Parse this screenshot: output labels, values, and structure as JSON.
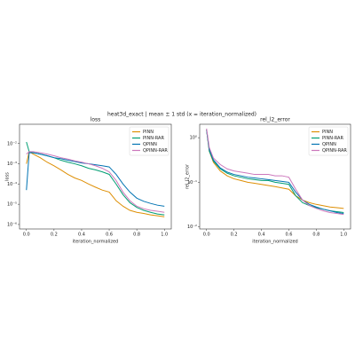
{
  "title": "heat3d_exact | mean ± 1 std (x = iteration_normalized)",
  "chart_data": [
    {
      "type": "line",
      "title": "loss",
      "xlabel": "iteration_normalized",
      "ylabel": "loss",
      "log_y": true,
      "legend": "upper right",
      "xlim": [
        -0.05,
        1.05
      ],
      "xticks": [
        {
          "value": 0,
          "label": "0.0"
        },
        0.2,
        0.4,
        0.6,
        0.8,
        {
          "value": 1,
          "label": "1.0"
        }
      ],
      "ylim": [
        6e-07,
        0.09
      ],
      "yticks": [
        {
          "value": 1e-06,
          "label": "10⁻⁶"
        },
        {
          "value": 1e-05,
          "label": "10⁻⁵"
        },
        {
          "value": 0.0001,
          "label": "10⁻⁴"
        },
        {
          "value": 0.001,
          "label": "10⁻³"
        },
        {
          "value": 0.01,
          "label": "10⁻²"
        }
      ],
      "x": [
        0,
        0.02,
        0.05,
        0.1,
        0.15,
        0.2,
        0.25,
        0.3,
        0.35,
        0.4,
        0.45,
        0.5,
        0.55,
        0.6,
        0.65,
        0.7,
        0.75,
        0.8,
        0.85,
        0.9,
        0.95,
        1.0
      ],
      "series": [
        {
          "name": "PINN",
          "color": "#de8f05",
          "values": [
            0.001,
            0.004,
            0.003,
            0.002,
            0.0012,
            0.0008,
            0.0005,
            0.0003,
            0.0002,
            0.00015,
            0.0001,
            7e-05,
            5e-05,
            4e-05,
            1.5e-05,
            8e-06,
            5e-06,
            4e-06,
            3.5e-06,
            3e-06,
            2.7e-06,
            2.4e-06
          ]
        },
        {
          "name": "PINN-RAR",
          "color": "#029e73",
          "values": [
            0.012,
            0.004,
            0.0035,
            0.003,
            0.0025,
            0.002,
            0.0015,
            0.0012,
            0.001,
            0.0008,
            0.0006,
            0.0005,
            0.0004,
            0.0003,
            0.0001,
            3e-05,
            1.2e-05,
            7e-06,
            5e-06,
            4e-06,
            3.3e-06,
            3e-06
          ]
        },
        {
          "name": "QPINN",
          "color": "#0173b2",
          "values": [
            5e-05,
            0.0035,
            0.0035,
            0.003,
            0.0025,
            0.002,
            0.0018,
            0.0015,
            0.0013,
            0.0011,
            0.001,
            0.0009,
            0.0008,
            0.0007,
            0.0003,
            0.0001,
            4e-05,
            2e-05,
            1.4e-05,
            1.1e-05,
            9e-06,
            8e-06
          ]
        },
        {
          "name": "QPINN-RAR",
          "color": "#cc78bc",
          "values": [
            0.003,
            0.004,
            0.004,
            0.0035,
            0.003,
            0.0025,
            0.002,
            0.0017,
            0.0014,
            0.0012,
            0.001,
            0.0008,
            0.0006,
            0.0004,
            0.00015,
            4e-05,
            1.5e-05,
            8e-06,
            6e-06,
            5e-06,
            4.5e-06,
            4e-06
          ]
        }
      ]
    },
    {
      "type": "line",
      "title": "rel_l2_error",
      "xlabel": "iteration_normalized",
      "ylabel": "rel_l2_error",
      "log_y": true,
      "legend": "upper right",
      "xlim": [
        -0.05,
        1.05
      ],
      "xticks": [
        {
          "value": 0,
          "label": "0.0"
        },
        0.2,
        0.4,
        0.6,
        0.8,
        {
          "value": 1,
          "label": "1.0"
        }
      ],
      "ylim": [
        0.009,
        2
      ],
      "yticks": [
        {
          "value": 0.01,
          "label": "10⁻²"
        },
        {
          "value": 0.1,
          "label": "10⁻¹"
        },
        {
          "value": 1,
          "label": "10⁰"
        }
      ],
      "x": [
        0,
        0.02,
        0.05,
        0.1,
        0.15,
        0.2,
        0.25,
        0.3,
        0.35,
        0.4,
        0.45,
        0.5,
        0.55,
        0.6,
        0.65,
        0.7,
        0.75,
        0.8,
        0.85,
        0.9,
        0.95,
        1.0
      ],
      "series": [
        {
          "name": "PINN",
          "color": "#de8f05",
          "values": [
            1.5,
            0.5,
            0.28,
            0.18,
            0.14,
            0.12,
            0.11,
            0.1,
            0.095,
            0.09,
            0.085,
            0.08,
            0.075,
            0.07,
            0.05,
            0.04,
            0.035,
            0.032,
            0.03,
            0.028,
            0.027,
            0.026
          ]
        },
        {
          "name": "PINN-RAR",
          "color": "#029e73",
          "values": [
            1.5,
            0.5,
            0.3,
            0.2,
            0.16,
            0.14,
            0.13,
            0.12,
            0.115,
            0.11,
            0.11,
            0.1,
            0.095,
            0.09,
            0.05,
            0.035,
            0.03,
            0.027,
            0.025,
            0.023,
            0.022,
            0.021
          ]
        },
        {
          "name": "QPINN",
          "color": "#0173b2",
          "values": [
            1.5,
            0.55,
            0.32,
            0.21,
            0.17,
            0.15,
            0.14,
            0.13,
            0.125,
            0.12,
            0.115,
            0.11,
            0.105,
            0.1,
            0.06,
            0.04,
            0.032,
            0.028,
            0.025,
            0.023,
            0.021,
            0.02
          ]
        },
        {
          "name": "QPINN-RAR",
          "color": "#cc78bc",
          "values": [
            1.6,
            0.6,
            0.35,
            0.25,
            0.2,
            0.18,
            0.17,
            0.16,
            0.15,
            0.15,
            0.15,
            0.14,
            0.14,
            0.13,
            0.07,
            0.04,
            0.03,
            0.026,
            0.023,
            0.021,
            0.02,
            0.019
          ]
        }
      ]
    }
  ]
}
